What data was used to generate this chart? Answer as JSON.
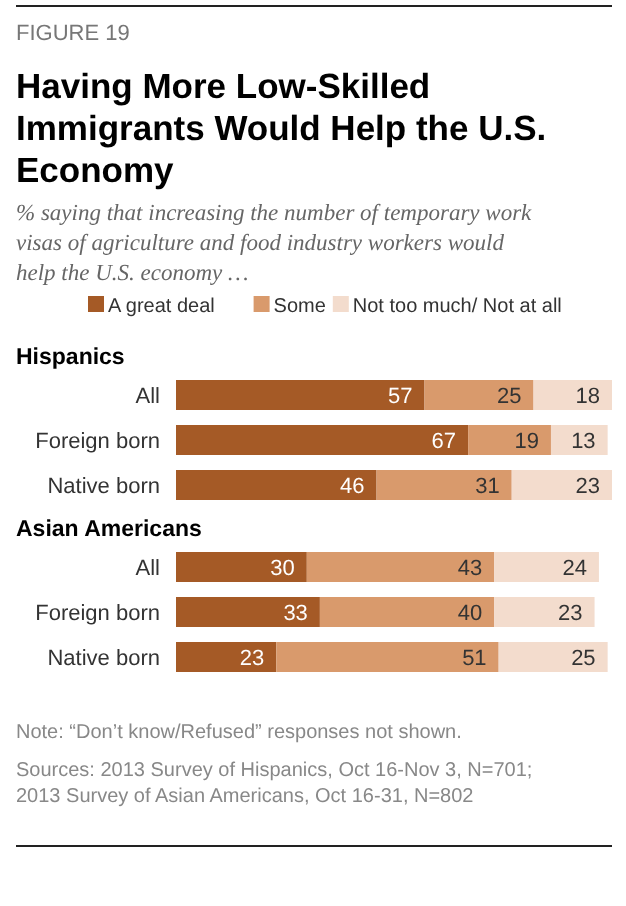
{
  "chart_data": [
    {
      "type": "other",
      "title": "Having More Low-Skilled Immigrants Would Help the U.S. Economy",
      "subtitle": "% saying that increasing the number of temporary work visas of agriculture and food industry workers would help the U.S. economy …",
      "annotations": [
        "FIGURE 19"
      ]
    },
    {
      "type": "bar",
      "orientation": "horizontal",
      "stacked": true,
      "title": "Hispanics",
      "categories": [
        "All",
        "Foreign born",
        "Native born"
      ],
      "xlim": [
        0,
        100
      ],
      "tick_labels": "y",
      "data_labels": true,
      "legend": "top",
      "series": [
        {
          "name": "A great deal",
          "color": "#a55a26",
          "values": [
            57,
            67,
            46
          ]
        },
        {
          "name": "Some",
          "color": "#d99a6c",
          "values": [
            25,
            19,
            31
          ]
        },
        {
          "name": "Not too much/ Not at all",
          "color": "#f3dccd",
          "values": [
            18,
            13,
            23
          ]
        }
      ]
    },
    {
      "type": "bar",
      "orientation": "horizontal",
      "stacked": true,
      "title": "Asian Americans",
      "categories": [
        "All",
        "Foreign born",
        "Native born"
      ],
      "xlim": [
        0,
        100
      ],
      "tick_labels": "y",
      "data_labels": true,
      "series": [
        {
          "color": "#a55a26",
          "values": [
            30,
            33,
            23
          ]
        },
        {
          "color": "#d99a6c",
          "values": [
            43,
            40,
            51
          ]
        },
        {
          "color": "#f3dccd",
          "values": [
            24,
            23,
            25
          ]
        }
      ],
      "annotations": [
        "Note: “Don’t know/Refused” responses not shown.",
        "Sources: 2013 Survey of Hispanics, Oct 16-Nov 3, N=701; 2013 Survey of Asian Americans, Oct 16-31, N=802"
      ]
    }
  ]
}
